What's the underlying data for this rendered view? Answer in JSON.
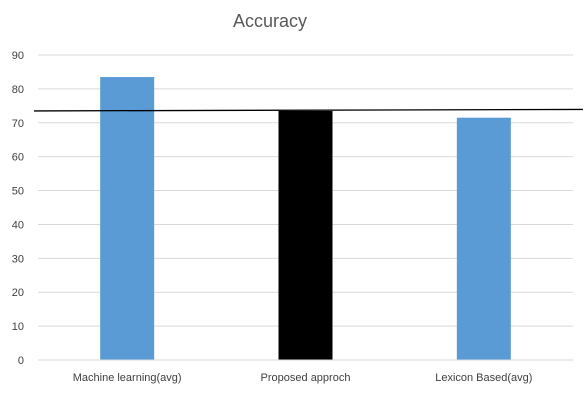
{
  "chart_data": {
    "type": "bar",
    "title": "Accuracy",
    "xlabel": "",
    "ylabel": "",
    "categories": [
      "Machine learning(avg)",
      "Proposed approch",
      "Lexicon Based(avg)"
    ],
    "values": [
      83.5,
      73.5,
      71.5
    ],
    "bar_colors": [
      "#5B9BD5",
      "#000000",
      "#5B9BD5"
    ],
    "ylim": [
      0,
      90
    ],
    "yticks": [
      0,
      10,
      20,
      30,
      40,
      50,
      60,
      70,
      80,
      90
    ],
    "reference_line": {
      "value": 73.5,
      "color": "#000000"
    },
    "grid": "horizontal",
    "gridline_color": "#D9D9D9"
  }
}
